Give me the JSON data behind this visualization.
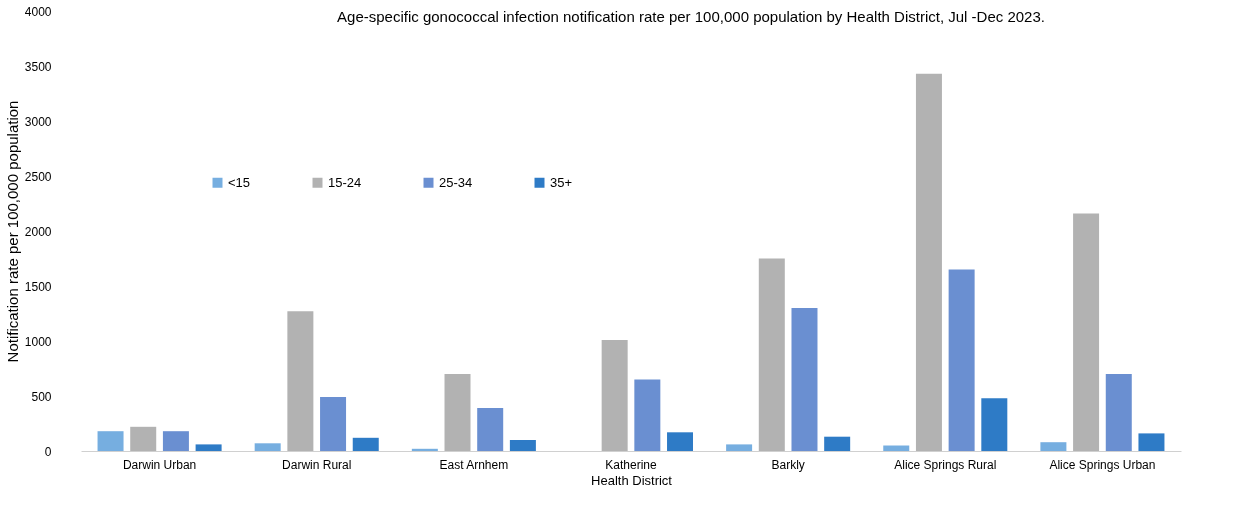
{
  "chart_data": {
    "type": "bar",
    "title": "Age-specific gonococcal infection notification rate per 100,000 population by Health District, Jul -Dec 2023.",
    "xlabel": "Health District",
    "ylabel": "Notification rate per 100,000 population",
    "categories": [
      "Darwin Urban",
      "Darwin Rural",
      "East Arnhem",
      "Katherine",
      "Barkly",
      "Alice Springs Rural",
      "Alice Springs Urban"
    ],
    "series": [
      {
        "name": "<15",
        "color": "#76aee0",
        "values": [
          180,
          70,
          20,
          0,
          60,
          50,
          80
        ]
      },
      {
        "name": "15-24",
        "color": "#b2b2b2",
        "values": [
          220,
          1270,
          700,
          1010,
          1750,
          3430,
          2160
        ]
      },
      {
        "name": "25-34",
        "color": "#6a8fd1",
        "values": [
          180,
          490,
          390,
          650,
          1300,
          1650,
          700
        ]
      },
      {
        "name": "35+",
        "color": "#2e7bc6",
        "values": [
          60,
          120,
          100,
          170,
          130,
          480,
          160
        ]
      }
    ],
    "ylim": [
      0,
      4000
    ],
    "yticks": [
      0,
      500,
      1000,
      1500,
      2000,
      2500,
      3000,
      3500,
      4000
    ],
    "grid": false,
    "legend": "top left"
  }
}
